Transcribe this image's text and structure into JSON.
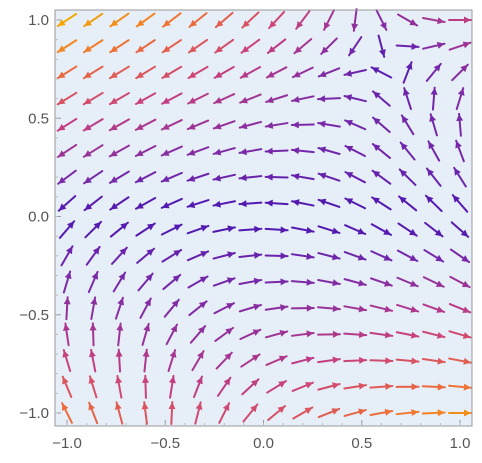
{
  "chart_data": {
    "type": "vector-field",
    "title": "",
    "xlabel": "",
    "ylabel": "",
    "xlim": [
      -1.0,
      1.0
    ],
    "ylim": [
      -1.0,
      1.0
    ],
    "x_ticks": [
      {
        "value": -1.0,
        "label": "−1.0"
      },
      {
        "value": -0.5,
        "label": "−0.5"
      },
      {
        "value": 0.0,
        "label": "0.0"
      },
      {
        "value": 0.5,
        "label": "0.5"
      },
      {
        "value": 1.0,
        "label": "1.0"
      }
    ],
    "y_ticks": [
      {
        "value": -1.0,
        "label": "−1.0"
      },
      {
        "value": -0.5,
        "label": "−0.5"
      },
      {
        "value": 0.0,
        "label": "0.0"
      },
      {
        "value": 0.5,
        "label": "0.5"
      },
      {
        "value": 1.0,
        "label": "1.0"
      }
    ],
    "grid": false,
    "legend": "none",
    "field": {
      "u": "-y + 2*x*y^2",
      "v": "x*y - y^3",
      "grid_points_per_axis": 16,
      "sample_range": [
        -1.0,
        1.0
      ]
    },
    "colors": {
      "background": "#e6eef8",
      "frame": "#999999",
      "color_scale": [
        "#3b0fb5",
        "#7a2aa8",
        "#c8407e",
        "#ee6d3a",
        "#f6a600"
      ]
    }
  }
}
